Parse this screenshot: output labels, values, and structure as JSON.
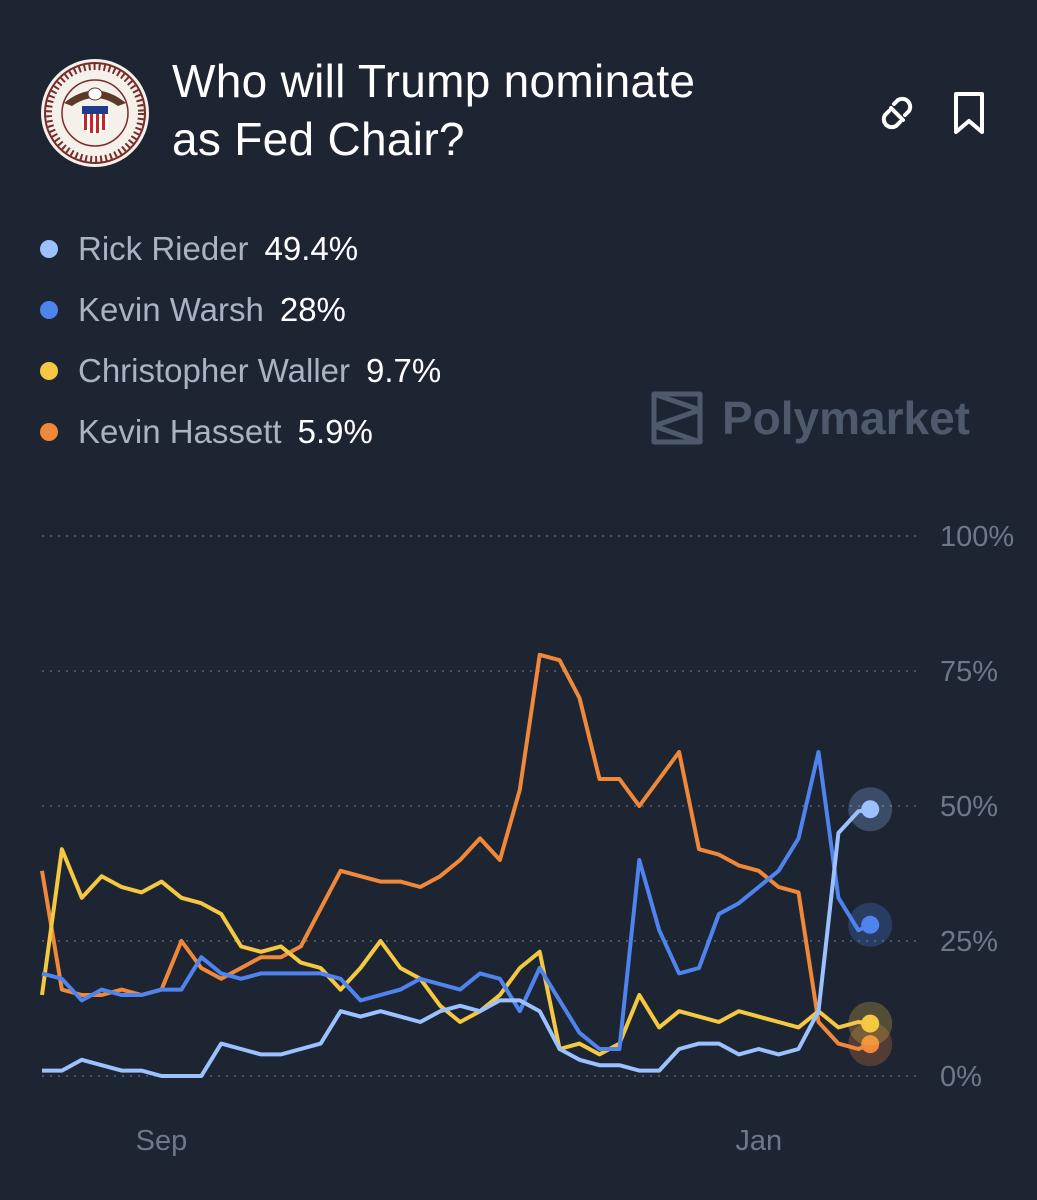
{
  "header": {
    "title": "Who will Trump nominate as Fed Chair?",
    "title_line1": "Who will Trump nominate",
    "title_line2": "as Fed Chair?",
    "seal_icon": "federal-reserve-seal-icon",
    "link_icon": "link-icon",
    "bookmark_icon": "bookmark-icon"
  },
  "brand": {
    "name": "Polymarket",
    "icon": "polymarket-logo-icon"
  },
  "legend": [
    {
      "name": "Rick Rieder",
      "value": "49.4%",
      "color": "#9cc1ff"
    },
    {
      "name": "Kevin Warsh",
      "value": "28%",
      "color": "#4f83ee"
    },
    {
      "name": "Christopher Waller",
      "value": "9.7%",
      "color": "#f5c842"
    },
    {
      "name": "Kevin Hassett",
      "value": "5.9%",
      "color": "#f0883a"
    }
  ],
  "chart_data": {
    "type": "line",
    "x_ticks": [
      "Sep",
      "Jan"
    ],
    "y_ticks": [
      "100%",
      "75%",
      "50%",
      "25%",
      "0%"
    ],
    "ylim": [
      0,
      100
    ],
    "grid": true,
    "x_units": "week index (0 = first data point, Sep tick at week 3, Jan tick at week 18)",
    "x_tick_positions": [
      3,
      18
    ],
    "series": [
      {
        "name": "Rick Rieder",
        "color": "#9cc1ff",
        "x": [
          0,
          0.5,
          1,
          1.5,
          2,
          2.5,
          3,
          3.5,
          4,
          4.5,
          5,
          5.5,
          6,
          6.5,
          7,
          7.5,
          8,
          8.5,
          9,
          9.5,
          10,
          10.5,
          11,
          11.5,
          12,
          12.5,
          13,
          13.5,
          14,
          14.5,
          15,
          15.5,
          16,
          16.5,
          17,
          17.5,
          18,
          18.5,
          19,
          19.5,
          20,
          20.5,
          20.8
        ],
        "y": [
          1,
          1,
          3,
          2,
          1,
          1,
          0,
          0,
          0,
          6,
          5,
          4,
          4,
          5,
          6,
          12,
          11,
          12,
          11,
          10,
          12,
          13,
          12,
          14,
          14,
          12,
          5,
          3,
          2,
          2,
          1,
          1,
          5,
          6,
          6,
          4,
          5,
          4,
          5,
          12,
          45,
          49,
          49.4
        ]
      },
      {
        "name": "Kevin Warsh",
        "color": "#4f83ee",
        "x": [
          0,
          0.5,
          1,
          1.5,
          2,
          2.5,
          3,
          3.5,
          4,
          4.5,
          5,
          5.5,
          6,
          6.5,
          7,
          7.5,
          8,
          8.5,
          9,
          9.5,
          10,
          10.5,
          11,
          11.5,
          12,
          12.5,
          13,
          13.5,
          14,
          14.5,
          15,
          15.5,
          16,
          16.5,
          17,
          17.5,
          18,
          18.5,
          19,
          19.5,
          20,
          20.5,
          20.8
        ],
        "y": [
          19,
          18,
          14,
          16,
          15,
          15,
          16,
          16,
          22,
          19,
          18,
          19,
          19,
          19,
          19,
          18,
          14,
          15,
          16,
          18,
          17,
          16,
          19,
          18,
          12,
          20,
          14,
          8,
          5,
          5,
          40,
          27,
          19,
          20,
          30,
          32,
          35,
          38,
          44,
          60,
          33,
          27,
          28
        ]
      },
      {
        "name": "Christopher Waller",
        "color": "#f5c842",
        "x": [
          0,
          0.5,
          1,
          1.5,
          2,
          2.5,
          3,
          3.5,
          4,
          4.5,
          5,
          5.5,
          6,
          6.5,
          7,
          7.5,
          8,
          8.5,
          9,
          9.5,
          10,
          10.5,
          11,
          11.5,
          12,
          12.5,
          13,
          13.5,
          14,
          14.5,
          15,
          15.5,
          16,
          16.5,
          17,
          17.5,
          18,
          18.5,
          19,
          19.5,
          20,
          20.5,
          20.8
        ],
        "y": [
          15,
          42,
          33,
          37,
          35,
          34,
          36,
          33,
          32,
          30,
          24,
          23,
          24,
          21,
          20,
          16,
          20,
          25,
          20,
          18,
          13,
          10,
          12,
          15,
          20,
          23,
          5,
          6,
          4,
          6,
          15,
          9,
          12,
          11,
          10,
          12,
          11,
          10,
          9,
          12,
          9,
          10,
          9.7
        ]
      },
      {
        "name": "Kevin Hassett",
        "color": "#f0883a",
        "x": [
          0,
          0.5,
          1,
          1.5,
          2,
          2.5,
          3,
          3.5,
          4,
          4.5,
          5,
          5.5,
          6,
          6.5,
          7,
          7.5,
          8,
          8.5,
          9,
          9.5,
          10,
          10.5,
          11,
          11.5,
          12,
          12.5,
          13,
          13.5,
          14,
          14.5,
          15,
          15.5,
          16,
          16.5,
          17,
          17.5,
          18,
          18.5,
          19,
          19.5,
          20,
          20.5,
          20.8
        ],
        "y": [
          38,
          16,
          15,
          15,
          16,
          15,
          16,
          25,
          20,
          18,
          20,
          22,
          22,
          24,
          31,
          38,
          37,
          36,
          36,
          35,
          37,
          40,
          44,
          40,
          53,
          78,
          77,
          70,
          55,
          55,
          50,
          55,
          60,
          42,
          41,
          39,
          38,
          35,
          34,
          10,
          6,
          5,
          5.9
        ]
      }
    ]
  }
}
